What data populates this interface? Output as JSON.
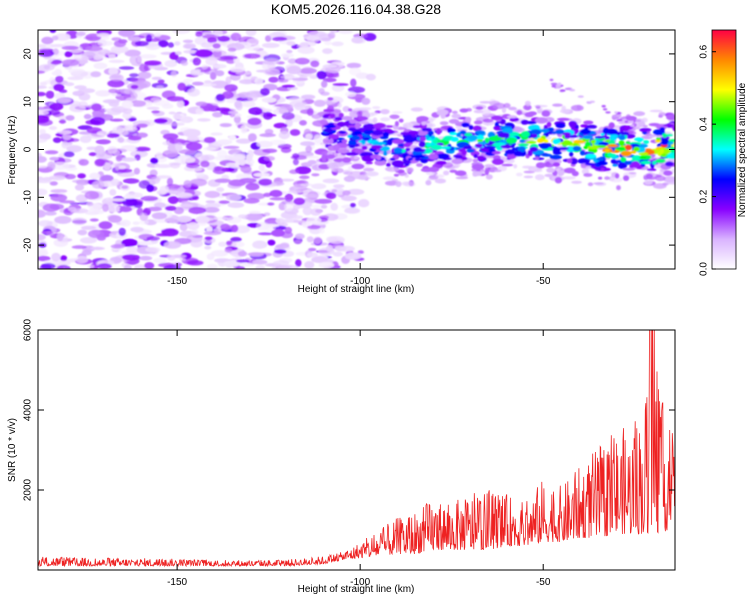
{
  "title": "KOM5.2026.116.04.38.G28",
  "chart_data": [
    {
      "type": "heatmap",
      "xlabel": "Height of straight line (km)",
      "ylabel": "Frequency (Hz)",
      "xlim": [
        -188,
        -14
      ],
      "ylim": [
        -25,
        25
      ],
      "xticks": [
        -150,
        -100,
        -50
      ],
      "yticks": [
        -20,
        -10,
        0,
        10,
        20
      ],
      "colorbar": {
        "label": "Normalized spectral amplitude",
        "range": [
          0.0,
          0.66
        ],
        "ticks": [
          0.0,
          0.2,
          0.4,
          0.6
        ],
        "colormap": [
          "#ffffff",
          "#d9b3ff",
          "#8800ff",
          "#0000ff",
          "#00ffff",
          "#00ff00",
          "#ffff00",
          "#ff8800",
          "#ff0044"
        ]
      },
      "ridge": {
        "description": "main Doppler trace",
        "x": [
          -110,
          -100,
          -90,
          -80,
          -70,
          -60,
          -50,
          -40,
          -30,
          -20,
          -14
        ],
        "frequency_center": [
          4,
          2,
          0,
          1,
          2,
          2,
          2,
          1,
          0,
          0,
          1
        ]
      },
      "noise_region_x": [
        -188,
        -105
      ]
    },
    {
      "type": "line",
      "xlabel": "Height of straight line (km)",
      "ylabel": "SNR (10 * v/v)",
      "xlim": [
        -188,
        -14
      ],
      "ylim": [
        0,
        6000
      ],
      "xticks": [
        -150,
        -100,
        -50
      ],
      "yticks": [
        2000,
        4000,
        6000
      ],
      "series": [
        {
          "name": "SNR",
          "color": "#ee2222",
          "x": [
            -188,
            -180,
            -170,
            -160,
            -150,
            -140,
            -130,
            -120,
            -110,
            -105,
            -100,
            -95,
            -90,
            -85,
            -80,
            -75,
            -70,
            -65,
            -60,
            -55,
            -50,
            -45,
            -40,
            -35,
            -30,
            -25,
            -22,
            -20,
            -18,
            -16,
            -14
          ],
          "envelope_upper": [
            380,
            320,
            300,
            300,
            280,
            260,
            250,
            260,
            350,
            450,
            700,
            1000,
            1300,
            1500,
            1800,
            1700,
            1900,
            2000,
            1900,
            1700,
            2300,
            2100,
            2600,
            3100,
            3500,
            3700,
            4500,
            6000,
            4200,
            4300,
            3000
          ],
          "envelope_lower": [
            100,
            100,
            100,
            100,
            100,
            100,
            100,
            100,
            150,
            250,
            300,
            350,
            400,
            400,
            500,
            500,
            500,
            500,
            600,
            600,
            700,
            700,
            800,
            800,
            900,
            900,
            900,
            1000,
            900,
            1000,
            1600
          ]
        }
      ]
    }
  ]
}
